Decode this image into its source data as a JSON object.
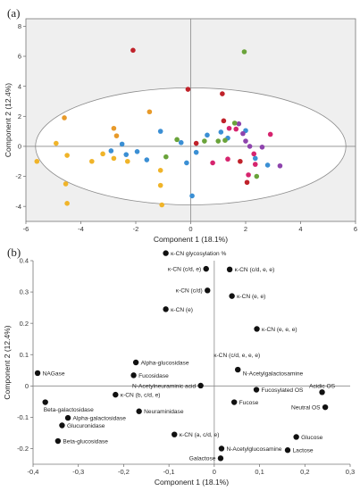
{
  "colors": {
    "panel_bg": "#efefef",
    "ellipse_fill": "#ffffff",
    "axis": "#777777",
    "zero_line": "#8a8a8a",
    "point_b": "#111111"
  },
  "chart_data": [
    {
      "type": "scatter",
      "panel_label": "(a)",
      "xlabel": "Component 1 (18.1%)",
      "ylabel": "Component 2 (12.4%)",
      "xlim": [
        -6,
        6
      ],
      "ylim": [
        -5,
        8.5
      ],
      "x_ticks": [
        "-6",
        "-4",
        "-2",
        "0",
        "2",
        "4",
        "6"
      ],
      "y_ticks": [
        "-4",
        "-2",
        "0",
        "2",
        "4",
        "6",
        "8"
      ],
      "x_tick_values": [
        -6,
        -4,
        -2,
        0,
        2,
        4,
        6
      ],
      "y_tick_values": [
        -4,
        -2,
        0,
        2,
        4,
        6,
        8
      ],
      "confidence_ellipse": {
        "center": [
          0,
          0
        ],
        "rx": 5.65,
        "ry": 3.9
      },
      "grid": false,
      "points": [
        {
          "x": -5.6,
          "y": -1.0,
          "c": "#f0b429"
        },
        {
          "x": -4.9,
          "y": 0.2,
          "c": "#f0b429"
        },
        {
          "x": -4.6,
          "y": 1.9,
          "c": "#e89a2a"
        },
        {
          "x": -4.5,
          "y": -0.6,
          "c": "#f0b429"
        },
        {
          "x": -4.55,
          "y": -2.5,
          "c": "#f0b429"
        },
        {
          "x": -4.5,
          "y": -3.8,
          "c": "#f0b429"
        },
        {
          "x": -3.6,
          "y": -1.0,
          "c": "#f0b429"
        },
        {
          "x": -3.2,
          "y": -0.5,
          "c": "#f0b429"
        },
        {
          "x": -2.8,
          "y": 1.2,
          "c": "#e89a2a"
        },
        {
          "x": -2.8,
          "y": -0.8,
          "c": "#f0b429"
        },
        {
          "x": -2.7,
          "y": 0.7,
          "c": "#e89a2a"
        },
        {
          "x": -2.3,
          "y": -1.0,
          "c": "#f0b429"
        },
        {
          "x": -1.5,
          "y": 2.3,
          "c": "#e89a2a"
        },
        {
          "x": -1.1,
          "y": -1.6,
          "c": "#f0b429"
        },
        {
          "x": -1.1,
          "y": -2.6,
          "c": "#f0b429"
        },
        {
          "x": -1.05,
          "y": -3.9,
          "c": "#f0b429"
        },
        {
          "x": -2.9,
          "y": -0.3,
          "c": "#3b8fd4"
        },
        {
          "x": -2.5,
          "y": 0.15,
          "c": "#3b8fd4"
        },
        {
          "x": -2.35,
          "y": -0.55,
          "c": "#3b8fd4"
        },
        {
          "x": -1.95,
          "y": -0.35,
          "c": "#3b8fd4"
        },
        {
          "x": -1.6,
          "y": -0.9,
          "c": "#3b8fd4"
        },
        {
          "x": -1.1,
          "y": 1.0,
          "c": "#3b8fd4"
        },
        {
          "x": -0.35,
          "y": 0.25,
          "c": "#3b8fd4"
        },
        {
          "x": -0.15,
          "y": -1.1,
          "c": "#3b8fd4"
        },
        {
          "x": 0.05,
          "y": -3.3,
          "c": "#3b8fd4"
        },
        {
          "x": 0.2,
          "y": -0.4,
          "c": "#3b8fd4"
        },
        {
          "x": 0.6,
          "y": 0.75,
          "c": "#3b8fd4"
        },
        {
          "x": 1.1,
          "y": 0.95,
          "c": "#3b8fd4"
        },
        {
          "x": 1.35,
          "y": 0.55,
          "c": "#3b8fd4"
        },
        {
          "x": 2.0,
          "y": 1.05,
          "c": "#3b8fd4"
        },
        {
          "x": 2.35,
          "y": -0.8,
          "c": "#3b8fd4"
        },
        {
          "x": 2.8,
          "y": -1.25,
          "c": "#3b8fd4"
        },
        {
          "x": -2.1,
          "y": 6.4,
          "c": "#c0222a"
        },
        {
          "x": -0.1,
          "y": 3.8,
          "c": "#c0222a"
        },
        {
          "x": 1.15,
          "y": 3.5,
          "c": "#c0222a"
        },
        {
          "x": 0.2,
          "y": 0.2,
          "c": "#c0222a"
        },
        {
          "x": 1.2,
          "y": 1.7,
          "c": "#c0222a"
        },
        {
          "x": 1.8,
          "y": -1.0,
          "c": "#c0222a"
        },
        {
          "x": 2.05,
          "y": -2.4,
          "c": "#c0222a"
        },
        {
          "x": 1.75,
          "y": 1.5,
          "c": "#8e44ad"
        },
        {
          "x": 1.9,
          "y": 0.85,
          "c": "#8e44ad"
        },
        {
          "x": 2.0,
          "y": 0.35,
          "c": "#8e44ad"
        },
        {
          "x": 2.15,
          "y": 0.0,
          "c": "#8e44ad"
        },
        {
          "x": 2.6,
          "y": -0.05,
          "c": "#8e44ad"
        },
        {
          "x": 3.25,
          "y": -1.3,
          "c": "#8e44ad"
        },
        {
          "x": 1.4,
          "y": 1.2,
          "c": "#d6246e"
        },
        {
          "x": 1.65,
          "y": 1.15,
          "c": "#d6246e"
        },
        {
          "x": 1.35,
          "y": -0.85,
          "c": "#d6246e"
        },
        {
          "x": 0.8,
          "y": -1.1,
          "c": "#d6246e"
        },
        {
          "x": 2.3,
          "y": -0.5,
          "c": "#d6246e"
        },
        {
          "x": 2.35,
          "y": -1.2,
          "c": "#d6246e"
        },
        {
          "x": 2.9,
          "y": 0.8,
          "c": "#d6246e"
        },
        {
          "x": 2.1,
          "y": -1.9,
          "c": "#d6246e"
        },
        {
          "x": 1.95,
          "y": 6.3,
          "c": "#6aa33a"
        },
        {
          "x": -0.9,
          "y": -0.7,
          "c": "#6aa33a"
        },
        {
          "x": -0.5,
          "y": 0.45,
          "c": "#6aa33a"
        },
        {
          "x": 0.5,
          "y": 0.35,
          "c": "#6aa33a"
        },
        {
          "x": 1.0,
          "y": 0.35,
          "c": "#6aa33a"
        },
        {
          "x": 1.25,
          "y": 0.4,
          "c": "#6aa33a"
        },
        {
          "x": 1.6,
          "y": 1.55,
          "c": "#6aa33a"
        },
        {
          "x": 2.4,
          "y": -2.0,
          "c": "#6aa33a"
        }
      ]
    },
    {
      "type": "scatter",
      "panel_label": "(b)",
      "xlabel": "Component 1 (18.1%)",
      "ylabel": "Component 2 (12.4%)",
      "xlim": [
        -0.4,
        0.3
      ],
      "ylim": [
        -0.25,
        0.4
      ],
      "x_ticks": [
        "-0,4",
        "-0,3",
        "-0,2",
        "-0,1",
        "0",
        "0,1",
        "0,2",
        "0,3"
      ],
      "y_ticks": [
        "-0.2",
        "-0.1",
        "0",
        "0.1",
        "0.2",
        "0.3",
        "0.4"
      ],
      "x_tick_values": [
        -0.4,
        -0.3,
        -0.2,
        -0.1,
        0,
        0.1,
        0.2,
        0.3
      ],
      "y_tick_values": [
        -0.2,
        -0.1,
        0,
        0.1,
        0.2,
        0.3,
        0.4
      ],
      "grid": false,
      "points": [
        {
          "x": -0.107,
          "y": 0.424,
          "label": "κ-CN glycosylation %",
          "pos": "r"
        },
        {
          "x": 0.034,
          "y": 0.372,
          "label": "κ-CN (c/d, e, e)",
          "pos": "r"
        },
        {
          "x": -0.018,
          "y": 0.374,
          "label": "κ-CN (c/d, e)",
          "pos": "l"
        },
        {
          "x": -0.015,
          "y": 0.305,
          "label": "κ-CN (c/d)",
          "pos": "l"
        },
        {
          "x": 0.039,
          "y": 0.287,
          "label": "κ-CN (e, e)",
          "pos": "r"
        },
        {
          "x": -0.107,
          "y": 0.245,
          "label": "κ-CN (e)",
          "pos": "r"
        },
        {
          "x": 0.094,
          "y": 0.182,
          "label": "κ-CN (e, e, e)",
          "pos": "r"
        },
        {
          "x": -0.39,
          "y": 0.041,
          "label": "NAGase",
          "pos": "r"
        },
        {
          "x": -0.173,
          "y": 0.075,
          "label": "Alpha-glucosidase",
          "pos": "r"
        },
        {
          "x": -0.178,
          "y": 0.034,
          "label": "Fucosidase",
          "pos": "r"
        },
        {
          "x": -0.218,
          "y": -0.028,
          "label": "κ-CN (b, c/d, e)",
          "pos": "r"
        },
        {
          "x": -0.03,
          "y": 0.001,
          "label": "N-Acetylneuraminic acid",
          "pos": "l"
        },
        {
          "x": 0.052,
          "y": 0.052,
          "label": "N-Acetylgalactosamine",
          "pos": "r",
          "dy": -0.012
        },
        {
          "x": 0.093,
          "y": -0.012,
          "label": "Fucosylated OS",
          "pos": "r"
        },
        {
          "x": 0.044,
          "y": -0.052,
          "label": "Fucose",
          "pos": "r"
        },
        {
          "x": 0.238,
          "y": -0.02,
          "label": "Acidic OS",
          "pos": "t"
        },
        {
          "x": 0.245,
          "y": -0.068,
          "label": "Neutral OS",
          "pos": "l"
        },
        {
          "x": -0.373,
          "y": -0.052,
          "label": "Beta-galactosidase",
          "pos": "b"
        },
        {
          "x": -0.166,
          "y": -0.081,
          "label": "Neuraminidase",
          "pos": "r"
        },
        {
          "x": -0.323,
          "y": -0.102,
          "label": "Alpha-galactosidase",
          "pos": "r"
        },
        {
          "x": -0.336,
          "y": -0.126,
          "label": "Glucuronidase",
          "pos": "r"
        },
        {
          "x": -0.345,
          "y": -0.176,
          "label": "Beta-glucosidase",
          "pos": "r"
        },
        {
          "x": -0.088,
          "y": -0.155,
          "label": "κ-CN (a, c/d, e)",
          "pos": "r"
        },
        {
          "x": 0.181,
          "y": -0.163,
          "label": "Glucose",
          "pos": "r"
        },
        {
          "x": 0.162,
          "y": -0.205,
          "label": "Lactose",
          "pos": "r"
        },
        {
          "x": 0.016,
          "y": -0.2,
          "label": "N-Acetylglucosamine",
          "pos": "r"
        },
        {
          "x": 0.014,
          "y": -0.231,
          "label": "Galactose",
          "pos": "l"
        }
      ],
      "extra_label": {
        "label": "κ-CN (c/d, e, e, e)",
        "x": 0.05,
        "y": 0.078,
        "pos": "t"
      }
    }
  ]
}
